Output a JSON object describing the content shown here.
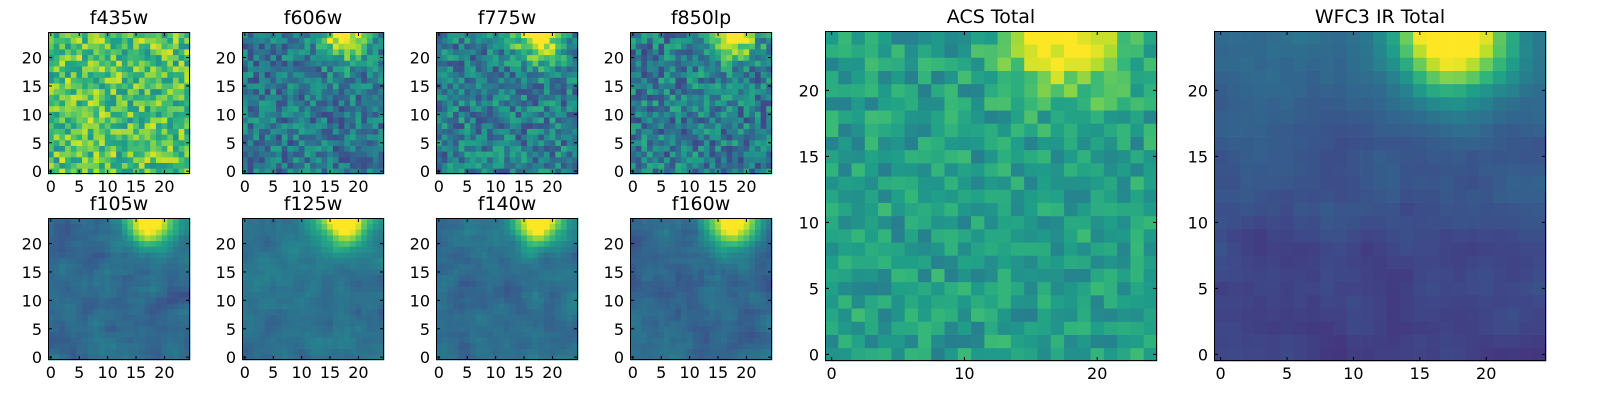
{
  "chart_data": [
    {
      "type": "heatmap",
      "title": "f435w",
      "grid": [
        25,
        25
      ],
      "xlim": [
        0,
        24
      ],
      "ylim": [
        0,
        24
      ],
      "xticks": [
        "0",
        "5",
        "10",
        "15",
        "20"
      ],
      "yticks": [
        "0",
        "5",
        "10",
        "15",
        "20"
      ],
      "colormap": "viridis",
      "pattern": "noisy bright field with no hot spot"
    },
    {
      "type": "heatmap",
      "title": "f606w",
      "grid": [
        25,
        25
      ],
      "xlim": [
        0,
        24
      ],
      "ylim": [
        0,
        24
      ],
      "xticks": [
        "0",
        "5",
        "10",
        "15",
        "20"
      ],
      "yticks": [
        "0",
        "5",
        "10",
        "15",
        "20"
      ],
      "colormap": "viridis",
      "pattern": "noisy field, bright spot at top x≈15–20"
    },
    {
      "type": "heatmap",
      "title": "f775w",
      "grid": [
        25,
        25
      ],
      "xlim": [
        0,
        24
      ],
      "ylim": [
        0,
        24
      ],
      "xticks": [
        "0",
        "5",
        "10",
        "15",
        "20"
      ],
      "yticks": [
        "0",
        "5",
        "10",
        "15",
        "20"
      ],
      "colormap": "viridis",
      "pattern": "noisy field, bright spot at top x≈15–20"
    },
    {
      "type": "heatmap",
      "title": "f850lp",
      "grid": [
        25,
        25
      ],
      "xlim": [
        0,
        24
      ],
      "ylim": [
        0,
        24
      ],
      "xticks": [
        "0",
        "5",
        "10",
        "15",
        "20"
      ],
      "yticks": [
        "0",
        "5",
        "10",
        "15",
        "20"
      ],
      "colormap": "viridis",
      "pattern": "noisy field, bright spot at top x≈15–20"
    },
    {
      "type": "heatmap",
      "title": "f105w",
      "grid": [
        25,
        25
      ],
      "xlim": [
        0,
        24
      ],
      "ylim": [
        0,
        24
      ],
      "xticks": [
        "0",
        "5",
        "10",
        "15",
        "20"
      ],
      "yticks": [
        "0",
        "5",
        "10",
        "15",
        "20"
      ],
      "colormap": "viridis",
      "pattern": "smooth field, bright spot at top x≈15–20"
    },
    {
      "type": "heatmap",
      "title": "f125w",
      "grid": [
        25,
        25
      ],
      "xlim": [
        0,
        24
      ],
      "ylim": [
        0,
        24
      ],
      "xticks": [
        "0",
        "5",
        "10",
        "15",
        "20"
      ],
      "yticks": [
        "0",
        "5",
        "10",
        "15",
        "20"
      ],
      "colormap": "viridis",
      "pattern": "smooth field, bright spot at top x≈15–20"
    },
    {
      "type": "heatmap",
      "title": "f140w",
      "grid": [
        25,
        25
      ],
      "xlim": [
        0,
        24
      ],
      "ylim": [
        0,
        24
      ],
      "xticks": [
        "0",
        "5",
        "10",
        "15",
        "20"
      ],
      "yticks": [
        "0",
        "5",
        "10",
        "15",
        "20"
      ],
      "colormap": "viridis",
      "pattern": "smooth field, bright spot at top x≈15–20"
    },
    {
      "type": "heatmap",
      "title": "f160w",
      "grid": [
        25,
        25
      ],
      "xlim": [
        0,
        24
      ],
      "ylim": [
        0,
        24
      ],
      "xticks": [
        "0",
        "5",
        "10",
        "15",
        "20"
      ],
      "yticks": [
        "0",
        "5",
        "10",
        "15",
        "20"
      ],
      "colormap": "viridis",
      "pattern": "smooth field, bright spot at top x≈15–20"
    },
    {
      "type": "heatmap",
      "title": "ACS Total",
      "grid": [
        25,
        25
      ],
      "xlim": [
        0,
        24
      ],
      "ylim": [
        0,
        24
      ],
      "xticks": [
        "0",
        "10",
        "20"
      ],
      "yticks": [
        "0",
        "5",
        "10",
        "15",
        "20"
      ],
      "colormap": "viridis",
      "pattern": "noisy green field, bright band at top x≈13–20"
    },
    {
      "type": "heatmap",
      "title": "WFC3 IR Total",
      "grid": [
        25,
        25
      ],
      "xlim": [
        0,
        24
      ],
      "ylim": [
        0,
        24
      ],
      "xticks": [
        "0",
        "5",
        "10",
        "15",
        "20"
      ],
      "yticks": [
        "0",
        "5",
        "10",
        "15",
        "20"
      ],
      "colormap": "viridis",
      "pattern": "dark purple field, bright spot at top x≈15–20"
    }
  ]
}
